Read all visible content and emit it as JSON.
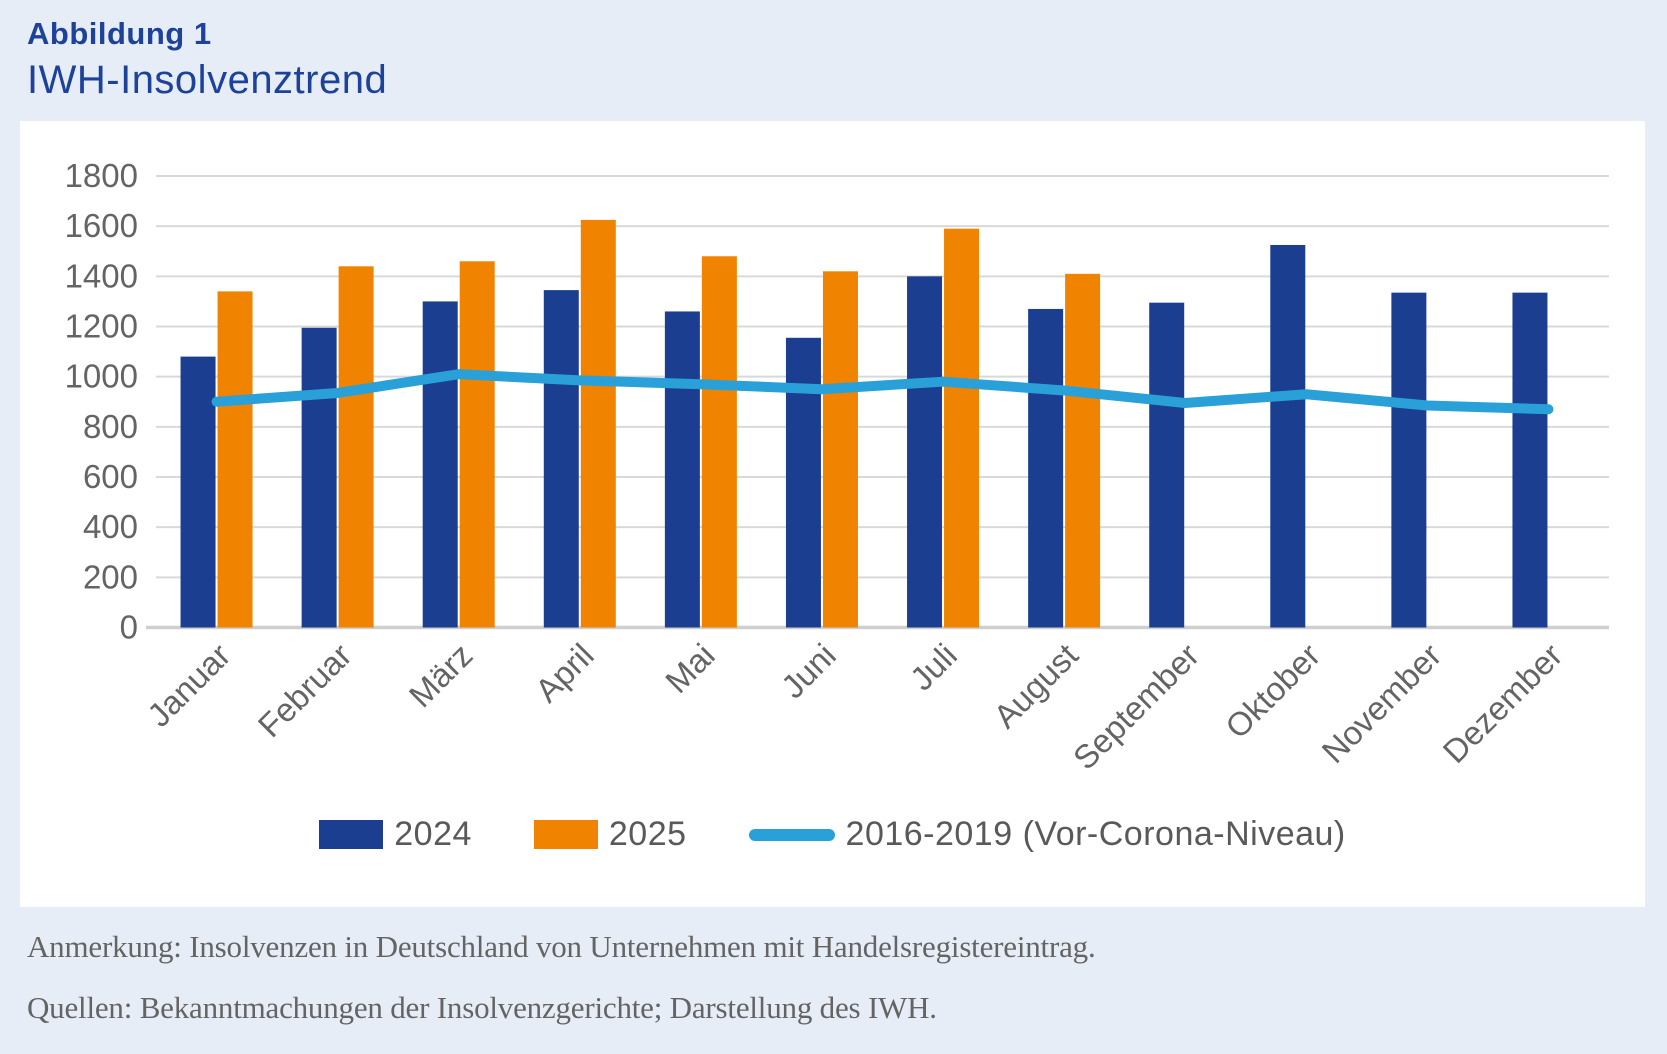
{
  "title": {
    "label": "Abbildung 1",
    "subtitle": "IWH-Insolvenztrend"
  },
  "chart_data": {
    "type": "bar",
    "subtype": "grouped bars with overlay line",
    "title": "IWH-Insolvenztrend",
    "categories": [
      "Januar",
      "Februar",
      "März",
      "April",
      "Mai",
      "Juni",
      "Juli",
      "August",
      "September",
      "Oktober",
      "November",
      "Dezember"
    ],
    "series": [
      {
        "name": "2024",
        "type": "bar",
        "color": "#1c3e91",
        "values": [
          1080,
          1195,
          1300,
          1345,
          1260,
          1155,
          1400,
          1270,
          1295,
          1525,
          1335,
          1335
        ]
      },
      {
        "name": "2025",
        "type": "bar",
        "color": "#f08300",
        "values": [
          1340,
          1440,
          1460,
          1625,
          1480,
          1420,
          1590,
          1410,
          null,
          null,
          null,
          null
        ]
      },
      {
        "name": "2016-2019 (Vor-Corona-Niveau)",
        "type": "line",
        "color": "#2aa0d8",
        "values": [
          900,
          935,
          1010,
          985,
          970,
          950,
          980,
          945,
          895,
          930,
          885,
          870
        ]
      }
    ],
    "xlabel": "",
    "ylabel": "",
    "ylim": [
      0,
      1800
    ],
    "ytick_step": 200,
    "grid": true,
    "legend_position": "bottom"
  },
  "footer": {
    "note": "Anmerkung: Insolvenzen in Deutschland von Unternehmen mit Handelsregistereintrag.",
    "source": "Quellen: Bekanntmachungen der Insolvenzgerichte; Darstellung des IWH."
  },
  "theme": {
    "page_bg": "#e7edf7",
    "panel_bg": "#ffffff",
    "title_color": "#1c429a",
    "axis_text": "#646464",
    "legend_text": "#595959",
    "grid": "#d9d9d9",
    "axis_line": "#cfcfcf"
  }
}
